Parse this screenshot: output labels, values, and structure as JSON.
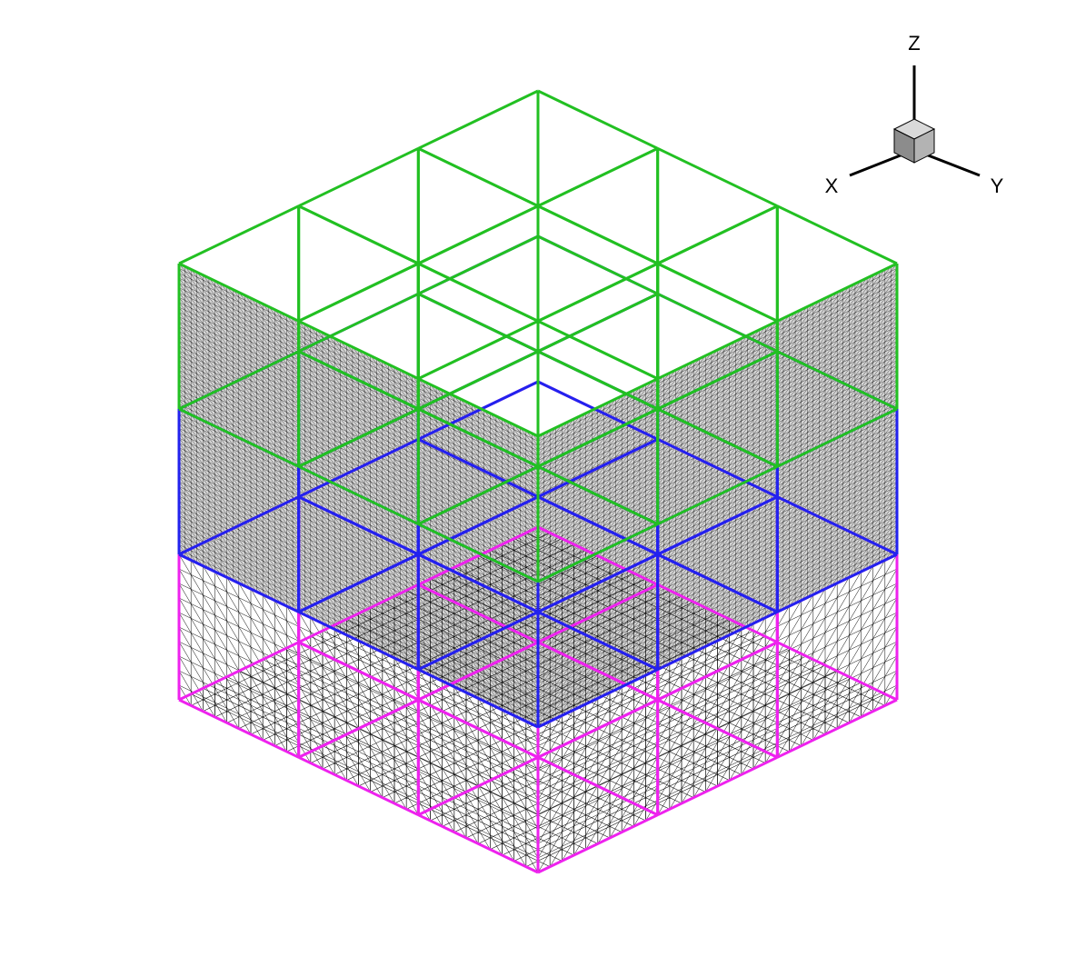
{
  "axes": {
    "x_label": "X",
    "y_label": "Y",
    "z_label": "Z"
  },
  "colors": {
    "background": "#ffffff",
    "mesh": "#000000",
    "frame_top": "#22c022",
    "frame_middle": "#2222ee",
    "frame_bottom": "#ee22ee",
    "triad_cube_top": "#d9d9d9",
    "triad_cube_left": "#8c8c8c",
    "triad_cube_right": "#b3b3b3"
  },
  "mesh": {
    "grid_divisions": 30,
    "levels": 3,
    "walls": [
      "floor",
      "back-left",
      "back-right"
    ],
    "frame_sides": [
      "top",
      "middle",
      "bottom"
    ]
  }
}
